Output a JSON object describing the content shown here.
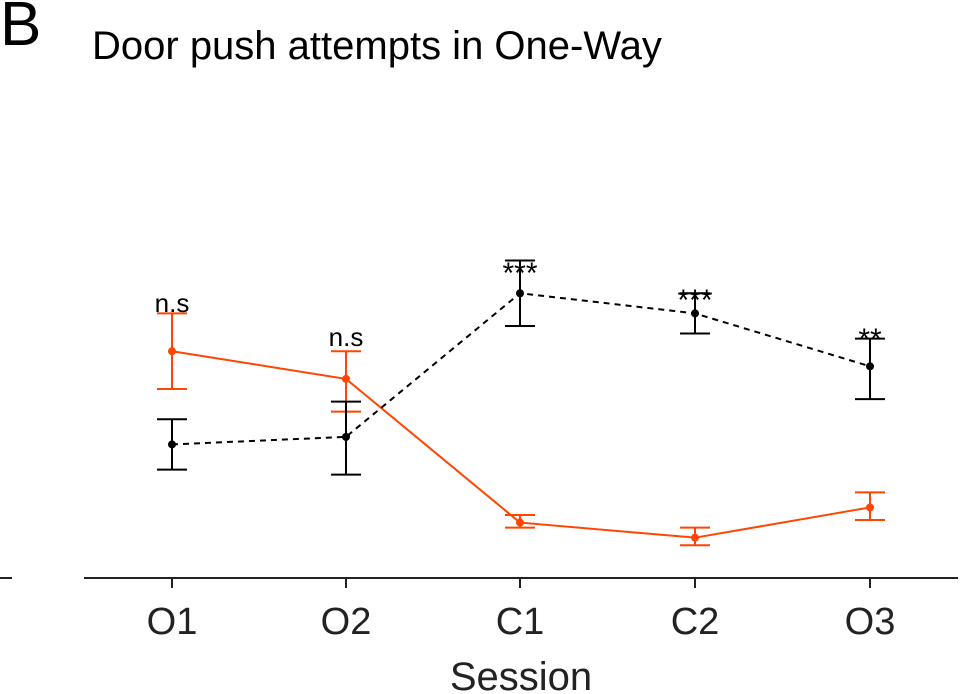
{
  "panel_letter": "B",
  "chart_data": {
    "type": "line",
    "title": "Door push attempts in One-Way",
    "xlabel": "Session",
    "ylabel": "",
    "categories": [
      "O1",
      "O2",
      "C1",
      "C2",
      "O3"
    ],
    "ylim": [
      0,
      1.5
    ],
    "grid": false,
    "legend": "none",
    "series": [
      {
        "color": "#ff4500",
        "line_style": "solid",
        "values": [
          0.9,
          0.79,
          0.22,
          0.16,
          0.28
        ],
        "err_low": [
          0.75,
          0.66,
          0.2,
          0.13,
          0.23
        ],
        "err_high": [
          1.05,
          0.9,
          0.25,
          0.2,
          0.34
        ]
      },
      {
        "color": "#000000",
        "line_style": "dashed",
        "values": [
          0.53,
          0.56,
          1.13,
          1.05,
          0.84
        ],
        "err_low": [
          0.43,
          0.41,
          1.0,
          0.97,
          0.71
        ],
        "err_high": [
          0.63,
          0.7,
          1.26,
          1.13,
          0.95
        ]
      }
    ],
    "annotations": [
      "n.s",
      "n.s",
      "***",
      "***",
      "**"
    ]
  }
}
